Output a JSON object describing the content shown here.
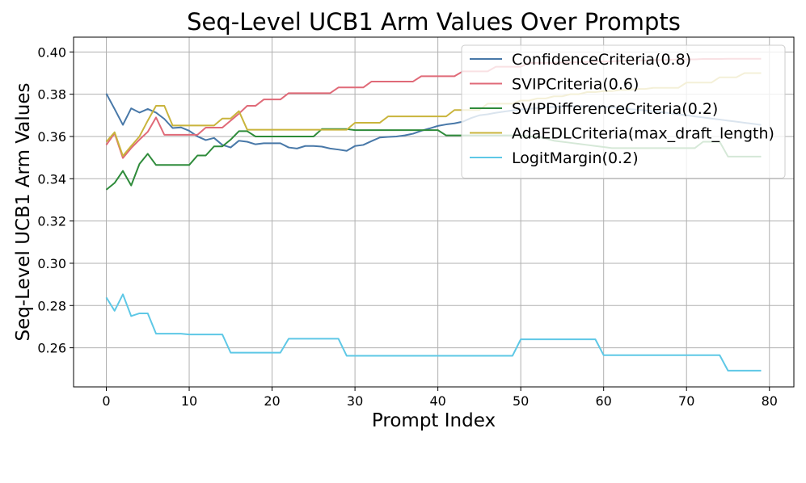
{
  "chart_data": {
    "type": "line",
    "title": "Seq-Level UCB1 Arm Values Over Prompts",
    "xlabel": "Prompt Index",
    "ylabel": "Seq-Level UCB1 Arm Values",
    "xlim": [
      -3.95,
      82.95
    ],
    "ylim": [
      0.2415,
      0.407
    ],
    "xticks": [
      0,
      10,
      20,
      30,
      40,
      50,
      60,
      70,
      80
    ],
    "xtick_labels": [
      "0",
      "10",
      "20",
      "30",
      "40",
      "50",
      "60",
      "70",
      "80"
    ],
    "yticks": [
      0.26,
      0.28,
      0.3,
      0.32,
      0.34,
      0.36,
      0.38,
      0.4
    ],
    "ytick_labels": [
      "0.26",
      "0.28",
      "0.30",
      "0.32",
      "0.34",
      "0.36",
      "0.38",
      "0.40"
    ],
    "grid": true,
    "legend_position": "top-right",
    "series": [
      {
        "name": "ConfidenceCriteria(0.8)",
        "color": "#4878a8",
        "x": [
          0,
          1,
          2,
          3,
          4,
          5,
          6,
          7,
          8,
          9,
          10,
          11,
          12,
          13,
          14,
          15,
          16,
          17,
          18,
          19,
          20,
          21,
          22,
          23,
          24,
          25,
          26,
          27,
          28,
          29,
          30,
          31,
          32,
          33,
          34,
          35,
          36,
          37,
          38,
          39,
          40,
          41,
          42,
          43,
          44,
          45,
          46,
          47,
          48,
          49,
          50,
          51,
          52,
          53,
          54,
          55,
          56,
          57,
          58,
          59,
          60,
          61,
          62,
          63,
          64,
          65,
          66,
          67,
          68,
          69,
          70,
          71,
          72,
          73,
          74,
          75,
          76,
          77,
          78,
          79
        ],
        "y": [
          0.3803,
          0.373,
          0.3655,
          0.3733,
          0.3713,
          0.373,
          0.3713,
          0.3683,
          0.364,
          0.3643,
          0.3627,
          0.36,
          0.3583,
          0.3593,
          0.356,
          0.3548,
          0.358,
          0.3575,
          0.3563,
          0.3568,
          0.3568,
          0.3568,
          0.3548,
          0.3543,
          0.3555,
          0.3555,
          0.3552,
          0.3543,
          0.3538,
          0.3532,
          0.3555,
          0.356,
          0.3578,
          0.3595,
          0.3598,
          0.36,
          0.3605,
          0.3613,
          0.3627,
          0.3638,
          0.365,
          0.3657,
          0.3662,
          0.367,
          0.3687,
          0.37,
          0.3705,
          0.3712,
          0.3718,
          0.3723,
          0.3728,
          0.373,
          0.3735,
          0.3738,
          0.374,
          0.3742,
          0.3743,
          0.3743,
          0.3743,
          0.3742,
          0.374,
          0.3738,
          0.3735,
          0.373,
          0.3727,
          0.3723,
          0.372,
          0.3715,
          0.371,
          0.3705,
          0.37,
          0.3695,
          0.369,
          0.3685,
          0.368,
          0.3675,
          0.367,
          0.3665,
          0.366,
          0.3655
        ]
      },
      {
        "name": "SVIPCriteria(0.6)",
        "color": "#e06a78",
        "x": [
          0,
          1,
          2,
          3,
          4,
          5,
          6,
          7,
          8,
          9,
          10,
          11,
          12,
          13,
          14,
          15,
          16,
          17,
          18,
          19,
          20,
          21,
          22,
          23,
          24,
          25,
          26,
          27,
          28,
          29,
          30,
          31,
          32,
          33,
          34,
          35,
          36,
          37,
          38,
          39,
          40,
          41,
          42,
          43,
          44,
          45,
          46,
          47,
          48,
          49,
          50,
          51,
          52,
          53,
          54,
          55,
          56,
          57,
          58,
          59,
          60,
          61,
          62,
          63,
          64,
          65,
          66,
          67,
          68,
          69,
          70,
          71,
          72,
          73,
          74,
          75,
          76,
          77,
          78,
          79
        ],
        "y": [
          0.356,
          0.3615,
          0.3498,
          0.3545,
          0.3585,
          0.3622,
          0.369,
          0.3608,
          0.3608,
          0.3608,
          0.3608,
          0.3608,
          0.3642,
          0.3642,
          0.3642,
          0.3675,
          0.3708,
          0.3745,
          0.3745,
          0.3775,
          0.3775,
          0.3775,
          0.3805,
          0.3805,
          0.3805,
          0.3805,
          0.3805,
          0.3805,
          0.3832,
          0.3832,
          0.3832,
          0.3832,
          0.386,
          0.386,
          0.386,
          0.386,
          0.386,
          0.386,
          0.3885,
          0.3885,
          0.3885,
          0.3885,
          0.3885,
          0.3908,
          0.3908,
          0.3908,
          0.3908,
          0.393,
          0.393,
          0.393,
          0.393,
          0.3948,
          0.3948,
          0.3948,
          0.3948,
          0.395,
          0.395,
          0.3952,
          0.3952,
          0.3955,
          0.3955,
          0.3955,
          0.3958,
          0.3958,
          0.396,
          0.396,
          0.3962,
          0.3962,
          0.3963,
          0.3965,
          0.3965,
          0.3965,
          0.3967,
          0.3967,
          0.3967,
          0.3968,
          0.3968,
          0.3968,
          0.3968,
          0.3968
        ]
      },
      {
        "name": "SVIPDifferenceCriteria(0.2)",
        "color": "#2e8b3a",
        "x": [
          0,
          1,
          2,
          3,
          4,
          5,
          6,
          7,
          8,
          9,
          10,
          11,
          12,
          13,
          14,
          15,
          16,
          17,
          18,
          19,
          20,
          21,
          22,
          23,
          24,
          25,
          26,
          27,
          28,
          29,
          30,
          31,
          32,
          33,
          34,
          35,
          36,
          37,
          38,
          39,
          40,
          41,
          42,
          43,
          44,
          45,
          46,
          47,
          48,
          49,
          50,
          51,
          52,
          53,
          54,
          55,
          56,
          57,
          58,
          59,
          60,
          61,
          62,
          63,
          64,
          65,
          66,
          67,
          68,
          69,
          70,
          71,
          72,
          73,
          74,
          75,
          76,
          77,
          78,
          79
        ],
        "y": [
          0.3348,
          0.338,
          0.3437,
          0.3368,
          0.347,
          0.3518,
          0.3465,
          0.3465,
          0.3465,
          0.3465,
          0.3465,
          0.351,
          0.351,
          0.3553,
          0.3553,
          0.3585,
          0.3625,
          0.3625,
          0.36,
          0.36,
          0.36,
          0.36,
          0.36,
          0.36,
          0.36,
          0.36,
          0.3635,
          0.3635,
          0.3635,
          0.3635,
          0.363,
          0.363,
          0.363,
          0.363,
          0.363,
          0.363,
          0.363,
          0.363,
          0.363,
          0.363,
          0.363,
          0.3605,
          0.3605,
          0.3605,
          0.3605,
          0.3605,
          0.3605,
          0.3605,
          0.3605,
          0.3605,
          0.3605,
          0.36,
          0.36,
          0.359,
          0.358,
          0.3575,
          0.357,
          0.3565,
          0.356,
          0.3555,
          0.355,
          0.3545,
          0.3545,
          0.3545,
          0.3545,
          0.3545,
          0.3545,
          0.3545,
          0.3545,
          0.3545,
          0.3545,
          0.3545,
          0.3575,
          0.3575,
          0.3575,
          0.3505,
          0.3505,
          0.3505,
          0.3505,
          0.3505
        ]
      },
      {
        "name": "AdaEDLCriteria(max_draft_length)",
        "color": "#c9b43c",
        "x": [
          0,
          1,
          2,
          3,
          4,
          5,
          6,
          7,
          8,
          9,
          10,
          11,
          12,
          13,
          14,
          15,
          16,
          17,
          18,
          19,
          20,
          21,
          22,
          23,
          24,
          25,
          26,
          27,
          28,
          29,
          30,
          31,
          32,
          33,
          34,
          35,
          36,
          37,
          38,
          39,
          40,
          41,
          42,
          43,
          44,
          45,
          46,
          47,
          48,
          49,
          50,
          51,
          52,
          53,
          54,
          55,
          56,
          57,
          58,
          59,
          60,
          61,
          62,
          63,
          64,
          65,
          66,
          67,
          68,
          69,
          70,
          71,
          72,
          73,
          74,
          75,
          76,
          77,
          78,
          79
        ],
        "y": [
          0.3575,
          0.362,
          0.3508,
          0.3555,
          0.36,
          0.3675,
          0.3745,
          0.3745,
          0.3652,
          0.3652,
          0.3652,
          0.3652,
          0.3652,
          0.3652,
          0.3685,
          0.3685,
          0.372,
          0.3632,
          0.3632,
          0.3632,
          0.3632,
          0.3632,
          0.3632,
          0.3632,
          0.3632,
          0.3632,
          0.3632,
          0.3632,
          0.3632,
          0.3632,
          0.3665,
          0.3665,
          0.3665,
          0.3665,
          0.3695,
          0.3695,
          0.3695,
          0.3695,
          0.3695,
          0.3695,
          0.3695,
          0.3695,
          0.3725,
          0.3725,
          0.3725,
          0.3725,
          0.3755,
          0.3755,
          0.3755,
          0.3755,
          0.377,
          0.377,
          0.378,
          0.378,
          0.379,
          0.379,
          0.38,
          0.38,
          0.381,
          0.381,
          0.3815,
          0.3815,
          0.382,
          0.382,
          0.3825,
          0.3825,
          0.383,
          0.383,
          0.383,
          0.383,
          0.3855,
          0.3855,
          0.3855,
          0.3855,
          0.388,
          0.388,
          0.388,
          0.39,
          0.39,
          0.39
        ]
      },
      {
        "name": "LogitMargin(0.2)",
        "color": "#5ec8e6",
        "x": [
          0,
          1,
          2,
          3,
          4,
          5,
          6,
          7,
          8,
          9,
          10,
          11,
          12,
          13,
          14,
          15,
          16,
          17,
          18,
          19,
          20,
          21,
          22,
          23,
          24,
          25,
          26,
          27,
          28,
          29,
          30,
          31,
          32,
          33,
          34,
          35,
          36,
          37,
          38,
          39,
          40,
          41,
          42,
          43,
          44,
          45,
          46,
          47,
          48,
          49,
          50,
          51,
          52,
          53,
          54,
          55,
          56,
          57,
          58,
          59,
          60,
          61,
          62,
          63,
          64,
          65,
          66,
          67,
          68,
          69,
          70,
          71,
          72,
          73,
          74,
          75,
          76,
          77,
          78,
          79
        ],
        "y": [
          0.2838,
          0.2775,
          0.2853,
          0.275,
          0.2763,
          0.2763,
          0.2667,
          0.2667,
          0.2667,
          0.2667,
          0.2663,
          0.2663,
          0.2663,
          0.2663,
          0.2663,
          0.2577,
          0.2577,
          0.2577,
          0.2577,
          0.2577,
          0.2577,
          0.2577,
          0.2643,
          0.2643,
          0.2643,
          0.2643,
          0.2643,
          0.2643,
          0.2643,
          0.2562,
          0.2562,
          0.2562,
          0.2562,
          0.2562,
          0.2562,
          0.2562,
          0.2562,
          0.2562,
          0.2562,
          0.2562,
          0.2562,
          0.2562,
          0.2562,
          0.2562,
          0.2562,
          0.2562,
          0.2562,
          0.2562,
          0.2562,
          0.2562,
          0.264,
          0.264,
          0.264,
          0.264,
          0.264,
          0.264,
          0.264,
          0.264,
          0.264,
          0.264,
          0.2565,
          0.2565,
          0.2565,
          0.2565,
          0.2565,
          0.2565,
          0.2565,
          0.2565,
          0.2565,
          0.2565,
          0.2565,
          0.2565,
          0.2565,
          0.2565,
          0.2565,
          0.2492,
          0.2492,
          0.2492,
          0.2492,
          0.2492
        ]
      }
    ]
  }
}
